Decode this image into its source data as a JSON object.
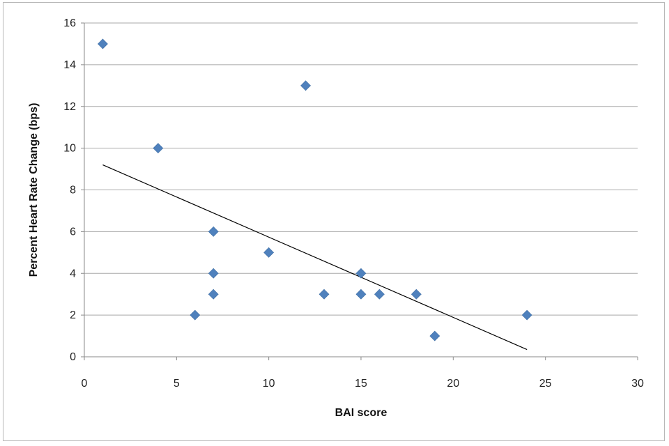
{
  "chart_data": {
    "type": "scatter",
    "title": "",
    "xlabel": "BAI score",
    "ylabel": "Percent Heart Rate Change (bps)",
    "xlim": [
      0,
      30
    ],
    "ylim": [
      0,
      16
    ],
    "x_ticks": [
      0,
      5,
      10,
      15,
      20,
      25,
      30
    ],
    "y_ticks": [
      0,
      2,
      4,
      6,
      8,
      10,
      12,
      14,
      16
    ],
    "grid": {
      "horizontal": true,
      "vertical": false
    },
    "legend": "none",
    "series": [
      {
        "color": "#4F81BD",
        "marker": "diamond",
        "points": [
          {
            "x": 1,
            "y": 15
          },
          {
            "x": 4,
            "y": 10
          },
          {
            "x": 6,
            "y": 2
          },
          {
            "x": 7,
            "y": 6
          },
          {
            "x": 7,
            "y": 4
          },
          {
            "x": 7,
            "y": 3
          },
          {
            "x": 10,
            "y": 5
          },
          {
            "x": 12,
            "y": 13
          },
          {
            "x": 13,
            "y": 3
          },
          {
            "x": 15,
            "y": 4
          },
          {
            "x": 15,
            "y": 3
          },
          {
            "x": 16,
            "y": 3
          },
          {
            "x": 18,
            "y": 3
          },
          {
            "x": 19,
            "y": 1
          },
          {
            "x": 24,
            "y": 2
          }
        ]
      }
    ],
    "trendline": {
      "type": "linear",
      "color": "#000000",
      "from": {
        "x": 1,
        "y": 9.2
      },
      "to": {
        "x": 24,
        "y": 0.35
      }
    }
  }
}
